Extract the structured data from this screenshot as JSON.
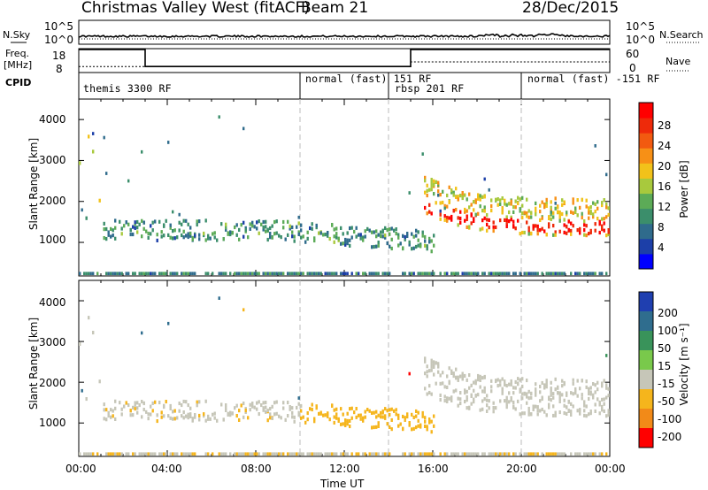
{
  "header": {
    "station": "Christmas Valley West (fitACF)",
    "beam": "Beam 21",
    "date": "28/Dec/2015"
  },
  "left_labels": {
    "nsky": "N.Sky",
    "nsky_ticks": [
      "10^5",
      "10^0"
    ],
    "freq": "Freq.",
    "freq_unit": "[MHz]",
    "freq_ticks": [
      "18",
      "8"
    ],
    "cpid": "CPID"
  },
  "right_labels": {
    "nsearch": "N.Search",
    "nsearch_ticks": [
      "10^5",
      "10^0"
    ],
    "nave": "Nave",
    "nave_ticks": [
      "60",
      "0"
    ]
  },
  "cpid_segments": [
    {
      "label": "themis 3300 RF",
      "start_hour": 0
    },
    {
      "label": "normal (fast) 151 RF",
      "start_hour": 10
    },
    {
      "label": "rbsp 201 RF",
      "start_hour": 14
    },
    {
      "label": "normal (fast) -151 RF",
      "start_hour": 20
    }
  ],
  "x_axis": {
    "label": "Time UT",
    "ticks": [
      "00:00",
      "04:00",
      "08:00",
      "12:00",
      "16:00",
      "20:00",
      "00:00"
    ],
    "range_hours": [
      0,
      24
    ]
  },
  "y_axis": {
    "label": "Slant Range [km]",
    "ticks": [
      "1000",
      "2000",
      "3000",
      "4000"
    ],
    "range_km": [
      180,
      4500
    ]
  },
  "power_scale": {
    "label": "Power [dB]",
    "ticks": [
      "28",
      "24",
      "20",
      "16",
      "12",
      "8",
      "4"
    ],
    "colors": [
      "#0000ff",
      "#1c3fa8",
      "#2f6b8c",
      "#3b8e6b",
      "#5cab57",
      "#a8c93d",
      "#f2c21a",
      "#f79016",
      "#f25a10",
      "#ee2a0a",
      "#ff0000"
    ]
  },
  "velocity_scale": {
    "label": "Velocity [m s⁻¹]",
    "ticks": [
      "200",
      "100",
      "50",
      "15",
      "-15",
      "-50",
      "-100",
      "-200"
    ],
    "colors": [
      "#1f3fb0",
      "#2f6d8e",
      "#39935a",
      "#79c94b",
      "#c6c6b8",
      "#f5b51c",
      "#f28a18",
      "#ff0000"
    ]
  },
  "chart_data": {
    "type": "heatmap",
    "title": "Christmas Valley West (fitACF) Beam 21 28/Dec/2015",
    "xlabel": "Time UT",
    "ylabel": "Slant Range [km]",
    "xlim_hours": [
      0,
      24
    ],
    "ylim_km": [
      180,
      4500
    ],
    "panels": [
      {
        "name": "Power [dB]",
        "range": [
          0,
          30
        ],
        "features": [
          {
            "feature": "near-range band",
            "t_hours": [
              0,
              24
            ],
            "range_km": [
              900,
              1400
            ],
            "typical_value": 8
          },
          {
            "feature": "strong backscatter band",
            "t_hours": [
              15.5,
              24
            ],
            "range_km": [
              1000,
              2300
            ],
            "typical_value": 26
          },
          {
            "feature": "ground-level band",
            "t_hours": [
              0,
              24
            ],
            "range_km": [
              200,
              320
            ],
            "typical_value": 8
          },
          {
            "feature": "early far-range patch",
            "t_hours": [
              0,
              1
            ],
            "range_km": [
              1500,
              4000
            ],
            "typical_value": 14
          }
        ]
      },
      {
        "name": "Velocity [m s-1]",
        "range": [
          -200,
          200
        ],
        "features": [
          {
            "feature": "low-velocity band",
            "t_hours": [
              0,
              16
            ],
            "range_km": [
              900,
              1400
            ],
            "typical_value": -30
          },
          {
            "feature": "near-zero velocity region",
            "t_hours": [
              15.5,
              24
            ],
            "range_km": [
              1100,
              2400
            ],
            "typical_value": 0
          },
          {
            "feature": "ground-level band",
            "t_hours": [
              0,
              24
            ],
            "range_km": [
              200,
              320
            ],
            "typical_value": -20
          }
        ]
      }
    ],
    "nsky_series": "N.Sky",
    "nsearch_series": "N.Search",
    "freq_series": {
      "name": "Freq. [MHz]",
      "segments": [
        {
          "t": [
            0,
            3
          ],
          "value": 18
        },
        {
          "t": [
            3,
            15
          ],
          "value": 10
        },
        {
          "t": [
            15,
            24
          ],
          "value": 18
        }
      ]
    },
    "nave_series": {
      "name": "Nave",
      "segments": [
        {
          "t": [
            0,
            15
          ],
          "value": 12
        },
        {
          "t": [
            15,
            24
          ],
          "value": 25
        }
      ]
    }
  }
}
